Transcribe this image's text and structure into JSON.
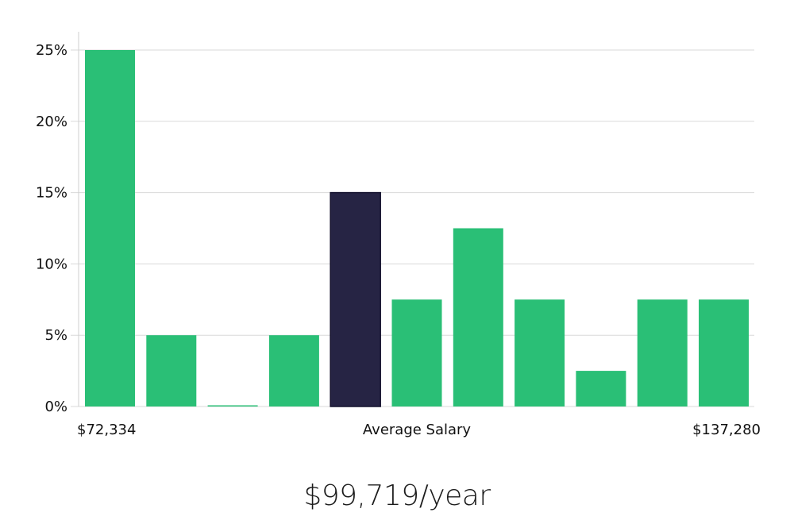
{
  "chart_data": {
    "type": "bar",
    "values": [
      25,
      5,
      0,
      5,
      15,
      7.5,
      12.5,
      7.5,
      2.5,
      7.5,
      7.5
    ],
    "highlight_index": 4,
    "yticks": [
      "0%",
      "5%",
      "10%",
      "15%",
      "20%",
      "25%"
    ],
    "ylim": [
      0,
      25
    ],
    "grid": true,
    "x_min_label": "$72,334",
    "x_center_label": "Average Salary",
    "x_max_label": "$137,280"
  },
  "colors": {
    "bar": "#2abf76",
    "highlight": "#262444",
    "grid": "#d9d9d9",
    "axis": "#cfcfcf"
  },
  "summary": {
    "average_salary": "$99,719/year"
  }
}
